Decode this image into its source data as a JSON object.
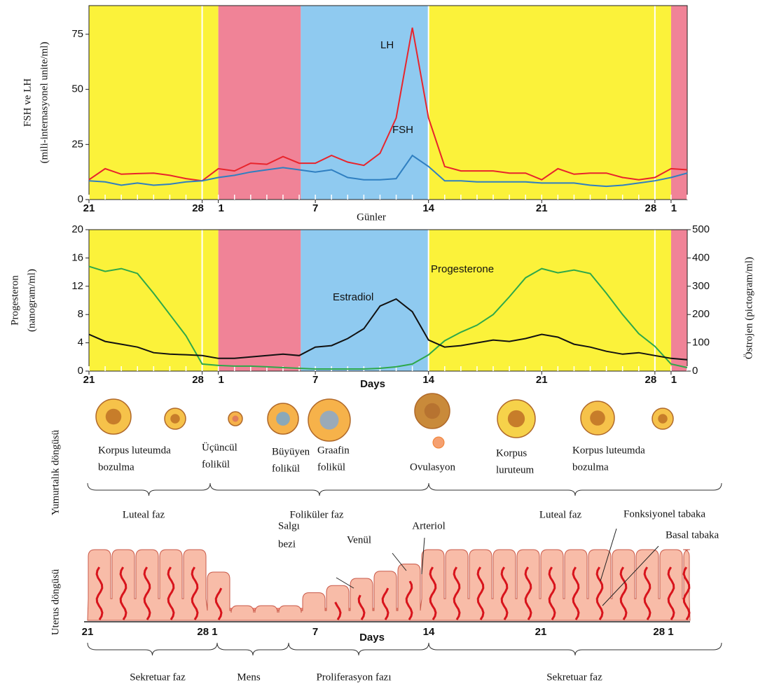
{
  "chart_data": [
    {
      "type": "line",
      "ylabel": [
        "FSH ve LH",
        "(mili-internasyonel unite/ml)"
      ],
      "xlabel": "Günler",
      "categories": [
        "21",
        null,
        null,
        null,
        null,
        null,
        null,
        "28",
        "1",
        null,
        null,
        null,
        null,
        null,
        "7",
        null,
        null,
        null,
        null,
        null,
        null,
        "14",
        null,
        null,
        null,
        null,
        null,
        null,
        "21",
        null,
        null,
        null,
        null,
        null,
        null,
        "28",
        "1",
        null
      ],
      "ylim": [
        0,
        88
      ],
      "yticks": [
        0,
        25,
        50,
        75
      ],
      "series": [
        {
          "name": "LH",
          "color": "#e8242c",
          "values": [
            9,
            14,
            11.5,
            11.8,
            12,
            11,
            9.5,
            8.5,
            14,
            13,
            16.5,
            16,
            19.5,
            16.5,
            16.5,
            20,
            17,
            15.5,
            21,
            37,
            78,
            37,
            15,
            13,
            13,
            13,
            12,
            12,
            9,
            14,
            11.5,
            12,
            12,
            10,
            9,
            10,
            14,
            13.5
          ]
        },
        {
          "name": "FSH",
          "color": "#2f7fc1",
          "values": [
            8.5,
            8,
            6.5,
            7.5,
            6.5,
            7,
            8,
            8.5,
            10,
            11,
            12.5,
            13.5,
            14.5,
            13.5,
            12.5,
            13.5,
            10,
            9,
            9,
            9.5,
            20,
            15,
            8.5,
            8.5,
            8,
            8,
            8,
            8,
            7.5,
            7.5,
            7.5,
            6.5,
            6,
            6.5,
            7.5,
            8.5,
            10,
            12
          ]
        }
      ]
    },
    {
      "type": "line",
      "ylabel": [
        "Progesteron",
        "(nanogram/ml)"
      ],
      "y2label": "Östrojen  (pictogram/ml)",
      "xlabel": "Days",
      "categories": [
        "21",
        null,
        null,
        null,
        null,
        null,
        null,
        "28",
        "1",
        null,
        null,
        null,
        null,
        null,
        "7",
        null,
        null,
        null,
        null,
        null,
        null,
        "14",
        null,
        null,
        null,
        null,
        null,
        null,
        "21",
        null,
        null,
        null,
        null,
        null,
        null,
        "28",
        "1",
        null
      ],
      "ylim": [
        0,
        20
      ],
      "yticks": [
        0,
        4,
        8,
        12,
        16,
        20
      ],
      "y2lim": [
        0,
        500
      ],
      "y2ticks": [
        0,
        100,
        200,
        300,
        400,
        500
      ],
      "series": [
        {
          "name": "Progesterone",
          "color": "#2ea84a",
          "values": [
            14.8,
            14.1,
            14.5,
            13.8,
            11,
            8,
            5,
            1,
            0.8,
            0.7,
            0.7,
            0.6,
            0.5,
            0.4,
            0.3,
            0.3,
            0.3,
            0.3,
            0.4,
            0.6,
            1,
            2.3,
            4.3,
            5.5,
            6.5,
            8,
            10.5,
            13.2,
            14.5,
            13.9,
            14.3,
            13.8,
            11,
            8,
            5.3,
            3.5,
            1,
            0.5
          ]
        },
        {
          "name": "Estradiol",
          "color": "#111111",
          "axis": "y2",
          "values": [
            130,
            105,
            95,
            85,
            65,
            60,
            58,
            55,
            45,
            45,
            50,
            55,
            60,
            55,
            85,
            90,
            115,
            150,
            230,
            255,
            210,
            110,
            85,
            90,
            100,
            110,
            105,
            115,
            130,
            120,
            95,
            85,
            70,
            60,
            65,
            55,
            45,
            40
          ]
        }
      ]
    }
  ],
  "ovary": {
    "title": "Yumurtalık döngüsü",
    "labels": [
      [
        "Korpus luteumda",
        "bozulma"
      ],
      [
        "Üçüncül",
        "folikül"
      ],
      [
        "Büyüyen",
        "folikül"
      ],
      [
        "Graafin",
        "folikül"
      ],
      [
        "Ovulasyon"
      ],
      [
        "Korpus",
        "luruteum"
      ],
      [
        "Korpus luteumda",
        "bozulma"
      ]
    ],
    "phases": [
      "Luteal faz",
      "Foliküler faz",
      "Luteal faz"
    ]
  },
  "uterus": {
    "title": "Uterus döngüsü",
    "labels": [
      [
        "Salgı",
        "bezi"
      ],
      [
        "Venül"
      ],
      [
        "Arteriol"
      ],
      [
        "Fonksiyonel tabaka"
      ],
      [
        "Basal tabaka"
      ]
    ],
    "axis": [
      "21",
      "28 1",
      "7",
      "14",
      "21",
      "28 1"
    ],
    "axis_label": "Days",
    "phases": [
      "Sekretuar faz",
      "Mens",
      "Proliferasyon fazı",
      "Sekretuar faz"
    ]
  }
}
